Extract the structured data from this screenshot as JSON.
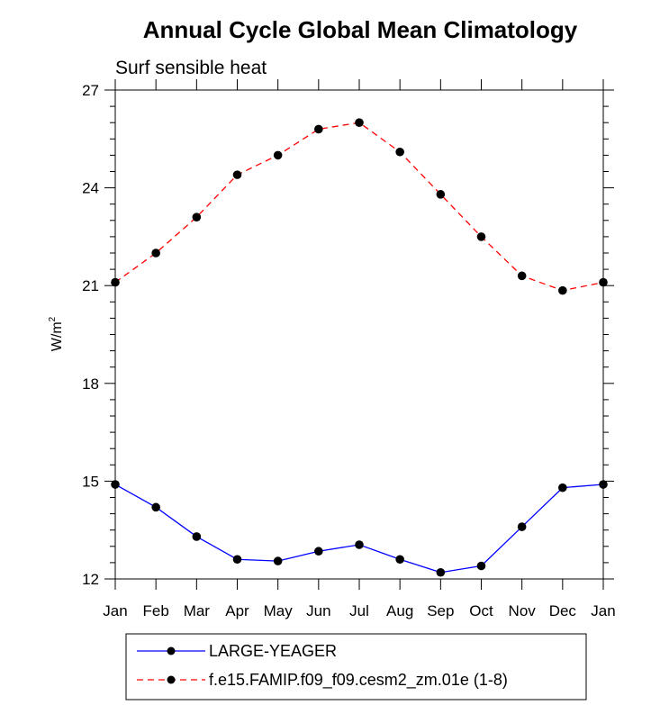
{
  "chart_data": {
    "type": "line",
    "title": "Annual Cycle Global Mean Climatology",
    "subtitle": "Surf sensible heat",
    "ylabel_base": "W/m",
    "ylabel_sup": "2",
    "xlabel": "",
    "categories": [
      "Jan",
      "Feb",
      "Mar",
      "Apr",
      "May",
      "Jun",
      "Jul",
      "Aug",
      "Sep",
      "Oct",
      "Nov",
      "Dec",
      "Jan"
    ],
    "ylim": [
      12,
      27
    ],
    "yticks": [
      12,
      15,
      18,
      21,
      24,
      27
    ],
    "series": [
      {
        "name": "LARGE-YEAGER",
        "color": "#0000ff",
        "dash": "solid",
        "values": [
          14.9,
          14.2,
          13.3,
          12.6,
          12.55,
          12.85,
          13.05,
          12.6,
          12.2,
          12.4,
          13.6,
          14.8,
          14.9
        ]
      },
      {
        "name": "f.e15.FAMIP.f09_f09.cesm2_zm.01e (1-8)",
        "color": "#ff0000",
        "dash": "dashed",
        "values": [
          21.1,
          22.0,
          23.1,
          24.4,
          25.0,
          25.8,
          26.0,
          25.1,
          23.8,
          22.5,
          21.3,
          20.85,
          21.1
        ]
      }
    ],
    "legend_position": "bottom-center"
  }
}
